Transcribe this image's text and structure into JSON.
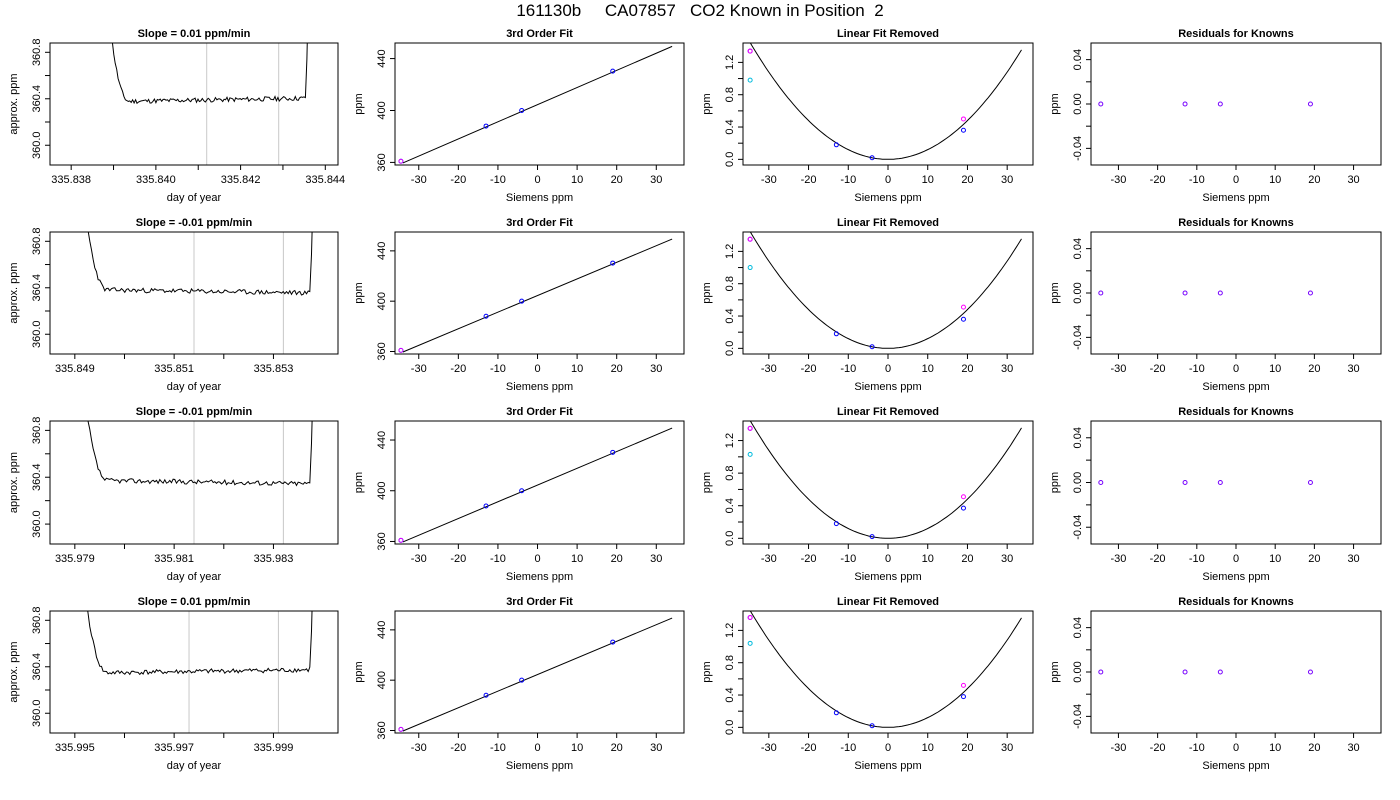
{
  "title": "161130b     CA07857   CO2 Known in Position  2",
  "chart_data": [
    {
      "type": "line",
      "panel": "time",
      "row": 0,
      "title": "Slope =  0.01  ppm/min",
      "xlabel": "day of year",
      "ylabel": "approx. ppm",
      "xlim": [
        335.8375,
        335.8443
      ],
      "ylim": [
        359.83,
        360.88
      ],
      "xticks": [
        335.838,
        335.839,
        335.84,
        335.841,
        335.842,
        335.843,
        335.844
      ],
      "xticklabels": [
        "335.838",
        "",
        "335.840",
        "",
        "335.842",
        "",
        "335.844"
      ],
      "yticks": [
        360.0,
        360.2,
        360.4,
        360.6,
        360.8
      ],
      "yticklabels": [
        "360.0",
        "",
        "360.4",
        "",
        "360.8"
      ],
      "vlines": [
        335.8412,
        335.8429
      ],
      "xstart": 335.8388,
      "xend": 335.8436,
      "base": 360.39,
      "slope": 0.01,
      "seed": 11
    },
    {
      "type": "line",
      "panel": "fit",
      "row": 0,
      "title": "3rd Order Fit",
      "xlabel": "Siemens ppm",
      "ylabel": "ppm",
      "xlim": [
        -36,
        37
      ],
      "ylim": [
        358,
        452
      ],
      "xticks": [
        -30,
        -20,
        -10,
        0,
        10,
        20,
        30
      ],
      "yticks": [
        360,
        400,
        440
      ],
      "line": {
        "x": [
          -34,
          34
        ],
        "y": [
          359.6,
          449.4
        ]
      },
      "points": [
        {
          "x": -34.5,
          "y": 360.9
        },
        {
          "x": -13,
          "y": 388.0
        },
        {
          "x": -4,
          "y": 400.0
        },
        {
          "x": 19,
          "y": 430.3
        }
      ]
    },
    {
      "type": "scatter",
      "panel": "lin",
      "row": 0,
      "title": "Linear Fit Removed",
      "xlabel": "Siemens ppm",
      "ylabel": "ppm",
      "xlim": [
        -36.5,
        36.5
      ],
      "ylim": [
        -0.07,
        1.44
      ],
      "xticks": [
        -30,
        -20,
        -10,
        0,
        10,
        20,
        30
      ],
      "yticks": [
        0,
        0.2,
        0.4,
        0.6,
        0.8,
        1.0,
        1.2
      ],
      "yticklabels": [
        "0.0",
        "",
        "0.4",
        "",
        "0.8",
        "",
        "1.2"
      ],
      "curve_coef": 0.0012,
      "points": [
        {
          "x": -34.7,
          "y": 1.34,
          "color": "#0000ff"
        },
        {
          "x": -34.7,
          "y": 1.34,
          "color": "#ff00ff"
        },
        {
          "x": -34.7,
          "y": 0.98,
          "color": "#00bbdd"
        },
        {
          "x": -13,
          "y": 0.18,
          "color": "#0000ff"
        },
        {
          "x": -4,
          "y": 0.02,
          "color": "#0000ff"
        },
        {
          "x": 19,
          "y": 0.36,
          "color": "#0000ff"
        },
        {
          "x": 19,
          "y": 0.5,
          "color": "#ff00ff"
        }
      ]
    },
    {
      "type": "scatter",
      "panel": "res",
      "row": 0,
      "title": "Residuals for Knowns",
      "xlabel": "Siemens ppm",
      "ylabel": "ppm",
      "xlim": [
        -37,
        37
      ],
      "ylim": [
        -0.055,
        0.055
      ],
      "xticks": [
        -30,
        -20,
        -10,
        0,
        10,
        20,
        30
      ],
      "yticks": [
        -0.04,
        -0.02,
        0,
        0.02,
        0.04
      ],
      "yticklabels": [
        "-0.04",
        "",
        "0.00",
        "",
        "0.04"
      ],
      "points": [
        {
          "x": -34.5,
          "y": 0
        },
        {
          "x": -13,
          "y": 0
        },
        {
          "x": -4,
          "y": 0
        },
        {
          "x": 19,
          "y": 0
        }
      ]
    },
    {
      "type": "line",
      "panel": "time",
      "row": 1,
      "title": "Slope =  -0.01  ppm/min",
      "xlabel": "day of year",
      "ylabel": "approx. ppm",
      "xlim": [
        335.8485,
        335.8543
      ],
      "ylim": [
        359.83,
        360.88
      ],
      "xticks": [
        335.849,
        335.85,
        335.851,
        335.852,
        335.853
      ],
      "xticklabels": [
        "335.849",
        "",
        "335.851",
        "",
        "335.853"
      ],
      "yticks": [
        360.0,
        360.2,
        360.4,
        360.6,
        360.8
      ],
      "yticklabels": [
        "360.0",
        "",
        "360.4",
        "",
        "360.8"
      ],
      "vlines": [
        335.8514,
        335.8532
      ],
      "xstart": 335.8491,
      "xend": 335.8538,
      "base": 360.37,
      "slope": -0.01,
      "seed": 23
    },
    {
      "type": "line",
      "panel": "fit",
      "row": 1,
      "title": "3rd Order Fit",
      "xlabel": "Siemens ppm",
      "ylabel": "ppm",
      "xlim": [
        -36,
        37
      ],
      "ylim": [
        358,
        455
      ],
      "xticks": [
        -30,
        -20,
        -10,
        0,
        10,
        20,
        30
      ],
      "yticks": [
        360,
        400,
        440
      ],
      "line": {
        "x": [
          -34,
          34
        ],
        "y": [
          359.6,
          449.4
        ]
      },
      "points": [
        {
          "x": -34.5,
          "y": 360.9
        },
        {
          "x": -13,
          "y": 388.0
        },
        {
          "x": -4,
          "y": 400.0
        },
        {
          "x": 19,
          "y": 430.3
        }
      ]
    },
    {
      "type": "scatter",
      "panel": "lin",
      "row": 1,
      "title": "Linear Fit Removed",
      "xlabel": "Siemens ppm",
      "ylabel": "ppm",
      "xlim": [
        -36.5,
        36.5
      ],
      "ylim": [
        -0.07,
        1.44
      ],
      "xticks": [
        -30,
        -20,
        -10,
        0,
        10,
        20,
        30
      ],
      "yticks": [
        0,
        0.2,
        0.4,
        0.6,
        0.8,
        1.0,
        1.2
      ],
      "yticklabels": [
        "0.0",
        "",
        "0.4",
        "",
        "0.8",
        "",
        "1.2"
      ],
      "curve_coef": 0.0012,
      "points": [
        {
          "x": -34.7,
          "y": 1.35,
          "color": "#0000ff"
        },
        {
          "x": -34.7,
          "y": 1.35,
          "color": "#ff00ff"
        },
        {
          "x": -34.7,
          "y": 1.0,
          "color": "#00bbdd"
        },
        {
          "x": -13,
          "y": 0.18,
          "color": "#0000ff"
        },
        {
          "x": -4,
          "y": 0.02,
          "color": "#0000ff"
        },
        {
          "x": 19,
          "y": 0.36,
          "color": "#0000ff"
        },
        {
          "x": 19,
          "y": 0.51,
          "color": "#ff00ff"
        }
      ]
    },
    {
      "type": "scatter",
      "panel": "res",
      "row": 1,
      "title": "Residuals for Knowns",
      "xlabel": "Siemens ppm",
      "ylabel": "ppm",
      "xlim": [
        -37,
        37
      ],
      "ylim": [
        -0.055,
        0.055
      ],
      "xticks": [
        -30,
        -20,
        -10,
        0,
        10,
        20,
        30
      ],
      "yticks": [
        -0.04,
        -0.02,
        0,
        0.02,
        0.04
      ],
      "yticklabels": [
        "-0.04",
        "",
        "0.00",
        "",
        "0.04"
      ],
      "points": [
        {
          "x": -34.5,
          "y": 0
        },
        {
          "x": -13,
          "y": 0
        },
        {
          "x": -4,
          "y": 0
        },
        {
          "x": 19,
          "y": 0
        }
      ]
    },
    {
      "type": "line",
      "panel": "time",
      "row": 2,
      "title": "Slope =  -0.01  ppm/min",
      "xlabel": "day of year",
      "ylabel": "approx. ppm",
      "xlim": [
        335.9785,
        335.9843
      ],
      "ylim": [
        359.83,
        360.88
      ],
      "xticks": [
        335.979,
        335.98,
        335.981,
        335.982,
        335.983
      ],
      "xticklabels": [
        "335.979",
        "",
        "335.981",
        "",
        "335.983"
      ],
      "yticks": [
        360.0,
        360.2,
        360.4,
        360.6,
        360.8
      ],
      "yticklabels": [
        "360.0",
        "",
        "360.4",
        "",
        "360.8"
      ],
      "vlines": [
        335.9814,
        335.9832
      ],
      "xstart": 335.9791,
      "xend": 335.9838,
      "base": 360.36,
      "slope": -0.01,
      "seed": 37
    },
    {
      "type": "line",
      "panel": "fit",
      "row": 2,
      "title": "3rd Order Fit",
      "xlabel": "Siemens ppm",
      "ylabel": "ppm",
      "xlim": [
        -36,
        37
      ],
      "ylim": [
        358,
        455
      ],
      "xticks": [
        -30,
        -20,
        -10,
        0,
        10,
        20,
        30
      ],
      "yticks": [
        360,
        400,
        440
      ],
      "line": {
        "x": [
          -34,
          34
        ],
        "y": [
          359.6,
          449.4
        ]
      },
      "points": [
        {
          "x": -34.5,
          "y": 360.9
        },
        {
          "x": -13,
          "y": 388.0
        },
        {
          "x": -4,
          "y": 400.0
        },
        {
          "x": 19,
          "y": 430.3
        }
      ]
    },
    {
      "type": "scatter",
      "panel": "lin",
      "row": 2,
      "title": "Linear Fit Removed",
      "xlabel": "Siemens ppm",
      "ylabel": "ppm",
      "xlim": [
        -36.5,
        36.5
      ],
      "ylim": [
        -0.07,
        1.44
      ],
      "xticks": [
        -30,
        -20,
        -10,
        0,
        10,
        20,
        30
      ],
      "yticks": [
        0,
        0.2,
        0.4,
        0.6,
        0.8,
        1.0,
        1.2
      ],
      "yticklabels": [
        "0.0",
        "",
        "0.4",
        "",
        "0.8",
        "",
        "1.2"
      ],
      "curve_coef": 0.0012,
      "points": [
        {
          "x": -34.7,
          "y": 1.35,
          "color": "#0000ff"
        },
        {
          "x": -34.7,
          "y": 1.35,
          "color": "#ff00ff"
        },
        {
          "x": -34.7,
          "y": 1.03,
          "color": "#00bbdd"
        },
        {
          "x": -13,
          "y": 0.18,
          "color": "#0000ff"
        },
        {
          "x": -4,
          "y": 0.02,
          "color": "#0000ff"
        },
        {
          "x": 19,
          "y": 0.37,
          "color": "#0000ff"
        },
        {
          "x": 19,
          "y": 0.51,
          "color": "#ff00ff"
        }
      ]
    },
    {
      "type": "scatter",
      "panel": "res",
      "row": 2,
      "title": "Residuals for Knowns",
      "xlabel": "Siemens ppm",
      "ylabel": "ppm",
      "xlim": [
        -37,
        37
      ],
      "ylim": [
        -0.055,
        0.055
      ],
      "xticks": [
        -30,
        -20,
        -10,
        0,
        10,
        20,
        30
      ],
      "yticks": [
        -0.04,
        -0.02,
        0,
        0.02,
        0.04
      ],
      "yticklabels": [
        "-0.04",
        "",
        "0.00",
        "",
        "0.04"
      ],
      "points": [
        {
          "x": -34.5,
          "y": 0
        },
        {
          "x": -13,
          "y": 0
        },
        {
          "x": -4,
          "y": 0
        },
        {
          "x": 19,
          "y": 0
        }
      ]
    },
    {
      "type": "line",
      "panel": "time",
      "row": 3,
      "title": "Slope =  0.01  ppm/min",
      "xlabel": "day of year",
      "ylabel": "approx. ppm",
      "xlim": [
        335.9945,
        336.0003
      ],
      "ylim": [
        359.83,
        360.88
      ],
      "xticks": [
        335.995,
        335.996,
        335.997,
        335.998,
        335.999
      ],
      "xticklabels": [
        "335.995",
        "",
        "335.997",
        "",
        "335.999"
      ],
      "yticks": [
        360.0,
        360.2,
        360.4,
        360.6,
        360.8
      ],
      "yticklabels": [
        "360.0",
        "",
        "360.4",
        "",
        "360.8"
      ],
      "vlines": [
        335.9973,
        335.9991
      ],
      "xstart": 335.9951,
      "xend": 335.9998,
      "base": 360.36,
      "slope": 0.01,
      "seed": 41
    },
    {
      "type": "line",
      "panel": "fit",
      "row": 3,
      "title": "3rd Order Fit",
      "xlabel": "Siemens ppm",
      "ylabel": "ppm",
      "xlim": [
        -36,
        37
      ],
      "ylim": [
        358,
        455
      ],
      "xticks": [
        -30,
        -20,
        -10,
        0,
        10,
        20,
        30
      ],
      "yticks": [
        360,
        400,
        440
      ],
      "line": {
        "x": [
          -34,
          34
        ],
        "y": [
          359.6,
          449.4
        ]
      },
      "points": [
        {
          "x": -34.5,
          "y": 360.9
        },
        {
          "x": -13,
          "y": 388.0
        },
        {
          "x": -4,
          "y": 400.0
        },
        {
          "x": 19,
          "y": 430.3
        }
      ]
    },
    {
      "type": "scatter",
      "panel": "lin",
      "row": 3,
      "title": "Linear Fit Removed",
      "xlabel": "Siemens ppm",
      "ylabel": "ppm",
      "xlim": [
        -36.5,
        36.5
      ],
      "ylim": [
        -0.07,
        1.44
      ],
      "xticks": [
        -30,
        -20,
        -10,
        0,
        10,
        20,
        30
      ],
      "yticks": [
        0,
        0.2,
        0.4,
        0.6,
        0.8,
        1.0,
        1.2
      ],
      "yticklabels": [
        "0.0",
        "",
        "0.4",
        "",
        "0.8",
        "",
        "1.2"
      ],
      "curve_coef": 0.0012,
      "points": [
        {
          "x": -34.7,
          "y": 1.36,
          "color": "#0000ff"
        },
        {
          "x": -34.7,
          "y": 1.36,
          "color": "#ff00ff"
        },
        {
          "x": -34.7,
          "y": 1.04,
          "color": "#00bbdd"
        },
        {
          "x": -13,
          "y": 0.18,
          "color": "#0000ff"
        },
        {
          "x": -4,
          "y": 0.02,
          "color": "#0000ff"
        },
        {
          "x": 19,
          "y": 0.38,
          "color": "#0000ff"
        },
        {
          "x": 19,
          "y": 0.52,
          "color": "#ff00ff"
        }
      ]
    },
    {
      "type": "scatter",
      "panel": "res",
      "row": 3,
      "title": "Residuals for Knowns",
      "xlabel": "Siemens ppm",
      "ylabel": "ppm",
      "xlim": [
        -37,
        37
      ],
      "ylim": [
        -0.055,
        0.055
      ],
      "xticks": [
        -30,
        -20,
        -10,
        0,
        10,
        20,
        30
      ],
      "yticks": [
        -0.04,
        -0.02,
        0,
        0.02,
        0.04
      ],
      "yticklabels": [
        "-0.04",
        "",
        "0.00",
        "",
        "0.04"
      ],
      "points": [
        {
          "x": -34.5,
          "y": 0
        },
        {
          "x": -13,
          "y": 0
        },
        {
          "x": -4,
          "y": 0
        },
        {
          "x": 19,
          "y": 0
        }
      ]
    }
  ],
  "colors": {
    "line": "#000000",
    "point": "#0000ff",
    "known": "#ff00ff",
    "reference": "#00bbdd",
    "residual": "#7700ff",
    "vline": "#c8c8c8"
  }
}
